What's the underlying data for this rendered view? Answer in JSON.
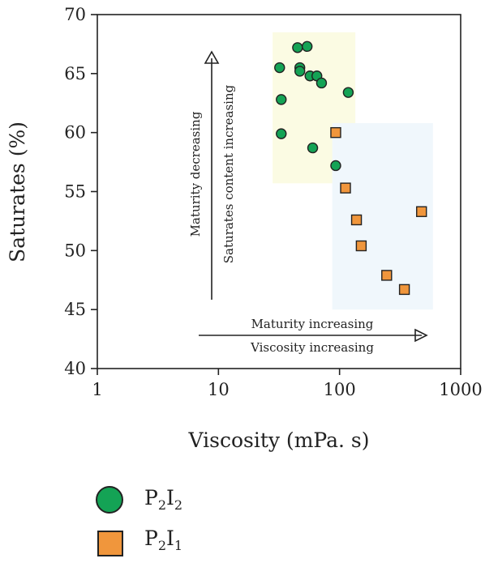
{
  "chart_data": {
    "type": "scatter",
    "xlabel": "Viscosity (mPa. s)",
    "ylabel": "Saturates (%)",
    "xscale": "log",
    "xlim": [
      1,
      1000
    ],
    "ylim": [
      40,
      70
    ],
    "x_ticks": [
      "1",
      "10",
      "100",
      "1000"
    ],
    "y_ticks": [
      "40",
      "45",
      "50",
      "55",
      "60",
      "65",
      "70"
    ],
    "grid": false,
    "legend_placement": "below",
    "series": [
      {
        "name": "P2I2",
        "marker": "circle",
        "color": "#14a355",
        "points": [
          {
            "x": 45,
            "y": 67.2
          },
          {
            "x": 54,
            "y": 67.3
          },
          {
            "x": 32,
            "y": 65.5
          },
          {
            "x": 47,
            "y": 65.5
          },
          {
            "x": 47,
            "y": 65.2
          },
          {
            "x": 57,
            "y": 64.8
          },
          {
            "x": 65,
            "y": 64.8
          },
          {
            "x": 71,
            "y": 64.2
          },
          {
            "x": 118,
            "y": 63.4
          },
          {
            "x": 33,
            "y": 62.8
          },
          {
            "x": 33,
            "y": 59.9
          },
          {
            "x": 60,
            "y": 58.7
          },
          {
            "x": 93,
            "y": 57.2
          }
        ]
      },
      {
        "name": "P2I1",
        "marker": "square",
        "color": "#f0963c",
        "points": [
          {
            "x": 93,
            "y": 60.0
          },
          {
            "x": 112,
            "y": 55.3
          },
          {
            "x": 138,
            "y": 52.6
          },
          {
            "x": 151,
            "y": 50.4
          },
          {
            "x": 475,
            "y": 53.3
          },
          {
            "x": 245,
            "y": 47.9
          },
          {
            "x": 343,
            "y": 46.7
          }
        ]
      }
    ],
    "regions": [
      {
        "x_range": [
          28,
          135
        ],
        "y_range": [
          55.7,
          68.5
        ],
        "color": "#fbfbe3"
      },
      {
        "x_range": [
          87,
          590
        ],
        "y_range": [
          45.0,
          60.8
        ],
        "color": "#f0f7fc"
      }
    ],
    "annotations": {
      "vertical_arrow": {
        "line1": "Maturity decreasing",
        "line2": "Saturates content increasing"
      },
      "horizontal_arrow": {
        "line1": "Maturity increasing",
        "line2": "Viscosity increasing"
      }
    }
  },
  "legend": {
    "items": [
      {
        "base": "P",
        "sub1": "2",
        "mid": "I",
        "sub2": "2"
      },
      {
        "base": "P",
        "sub1": "2",
        "mid": "I",
        "sub2": "1"
      }
    ]
  }
}
